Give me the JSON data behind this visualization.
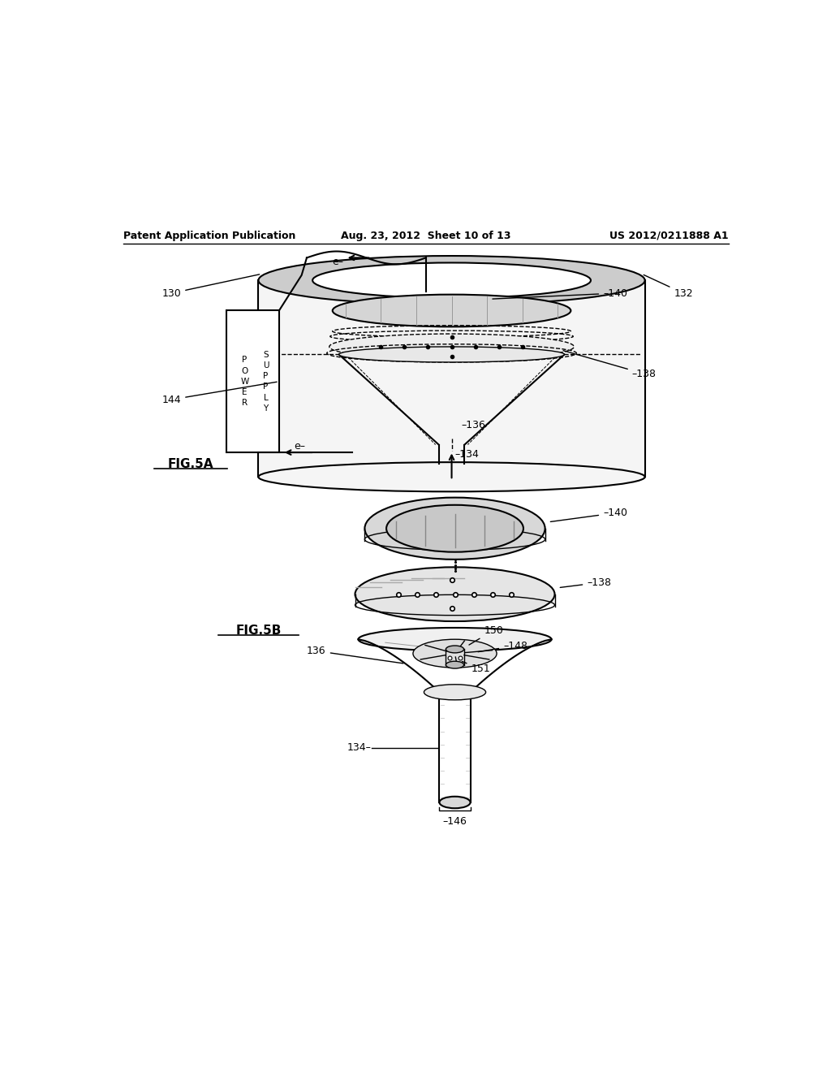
{
  "header_left": "Patent Application Publication",
  "header_mid": "Aug. 23, 2012  Sheet 10 of 13",
  "header_right": "US 2012/0211888 A1",
  "fig5a_label": "FIG.5A",
  "fig5b_label": "FIG.5B",
  "background": "#ffffff",
  "line_color": "#000000"
}
